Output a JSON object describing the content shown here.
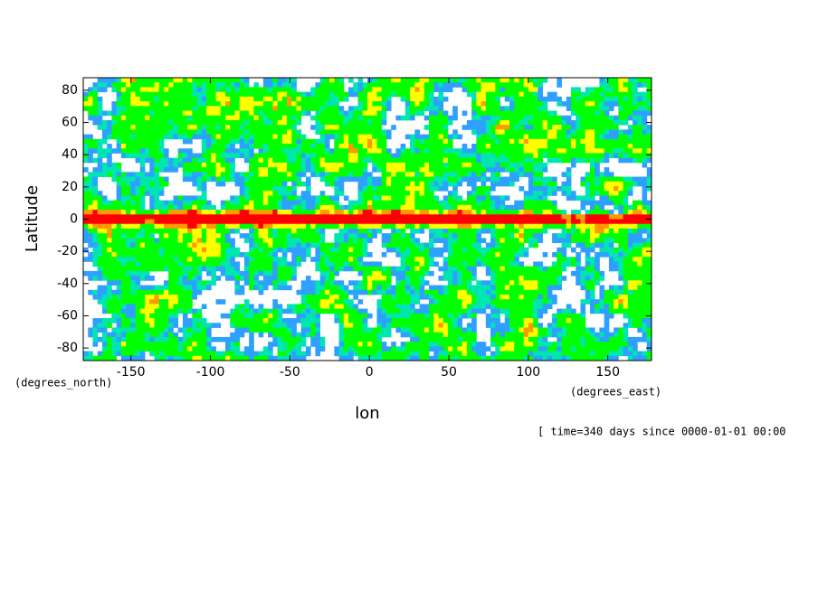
{
  "chart_data": {
    "type": "contour",
    "x_label": "lon",
    "y_label": "Latitude",
    "x_units": "(degrees_east)",
    "y_units": "(degrees_north)",
    "annotation": "[ time=340 days since 0000-01-01 00:00",
    "xlim": [
      -180,
      177.5
    ],
    "ylim": [
      -87.8,
      87.8
    ],
    "xticks": [
      -150,
      -100,
      -50,
      0,
      50,
      100,
      150
    ],
    "yticks": [
      -80,
      -60,
      -40,
      -20,
      0,
      20,
      40,
      60,
      80
    ],
    "colors": [
      "#2ea0ff",
      "#00e6b0",
      "#00ff00",
      "#ffff00",
      "#ff9900",
      "#ff0000"
    ]
  }
}
